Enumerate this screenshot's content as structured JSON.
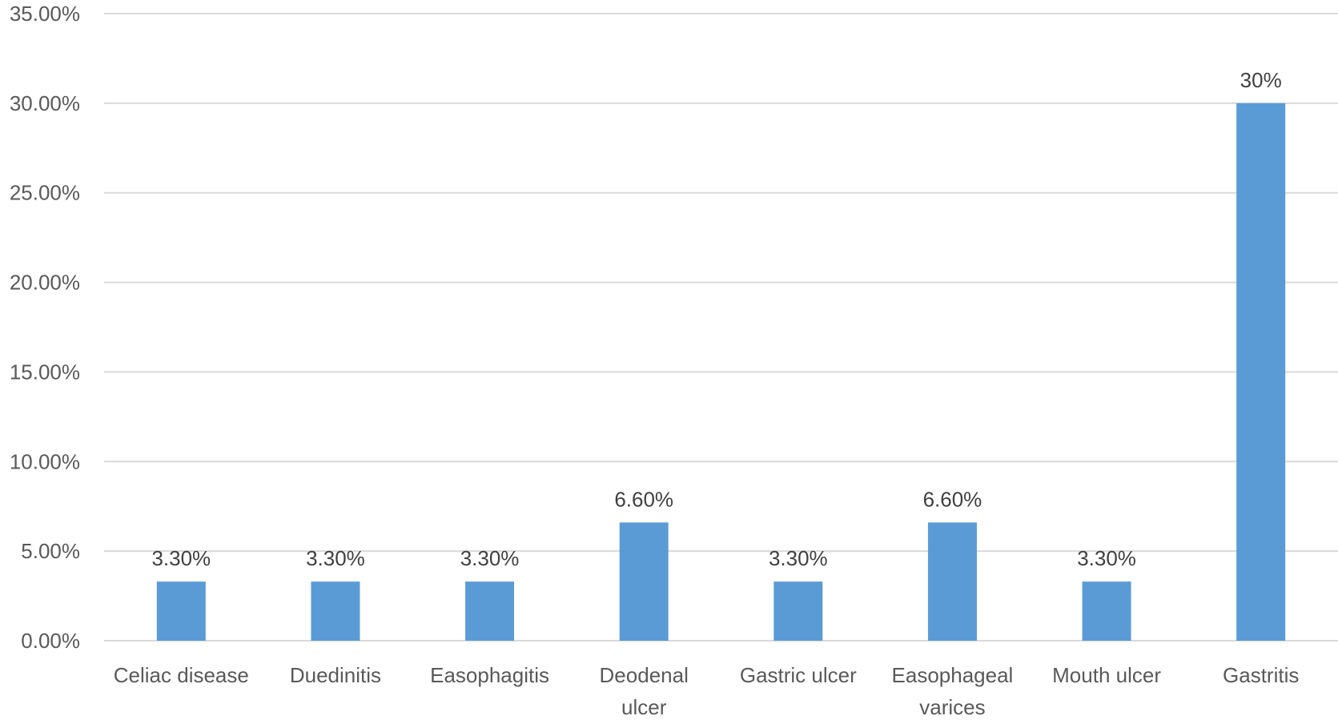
{
  "chart_data": {
    "type": "bar",
    "categories": [
      [
        "Celiac disease"
      ],
      [
        "Duedinitis"
      ],
      [
        "Easophagitis"
      ],
      [
        "Deodenal",
        "ulcer"
      ],
      [
        "Gastric ulcer"
      ],
      [
        "Easophageal",
        "varices"
      ],
      [
        "Mouth ulcer"
      ],
      [
        "Gastritis"
      ]
    ],
    "values": [
      3.3,
      3.3,
      3.3,
      6.6,
      3.3,
      6.6,
      3.3,
      30
    ],
    "data_labels": [
      "3.30%",
      "3.30%",
      "3.30%",
      "6.60%",
      "3.30%",
      "6.60%",
      "3.30%",
      "30%"
    ],
    "ylim": [
      0,
      35
    ],
    "yticks": [
      0,
      5,
      10,
      15,
      20,
      25,
      30,
      35
    ],
    "ytick_labels": [
      "0.00%",
      "5.00%",
      "10.00%",
      "15.00%",
      "20.00%",
      "25.00%",
      "30.00%",
      "35.00%"
    ],
    "grid": true,
    "legend": "none",
    "bar_color": "#5b9bd5",
    "grid_color": "#d9d9d9"
  }
}
